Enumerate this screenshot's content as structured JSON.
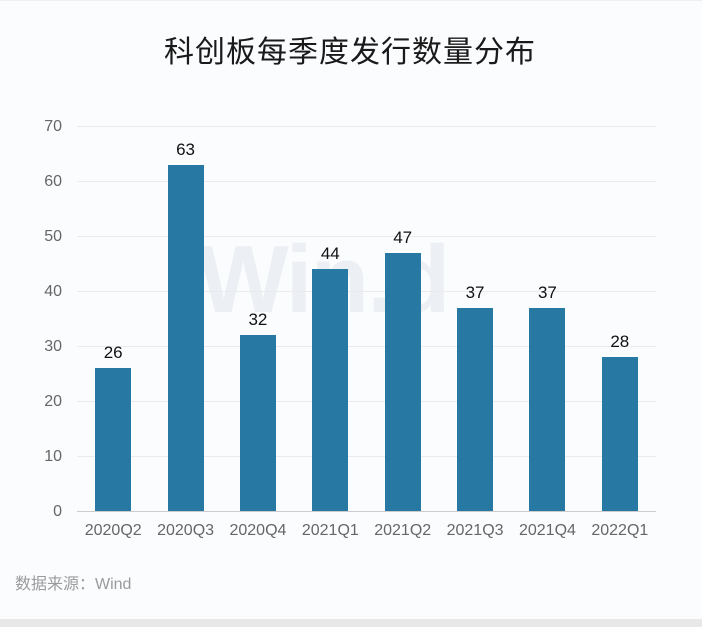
{
  "page": {
    "title": "科创板每季度发行数量分布",
    "source_note": "数据来源：Wind",
    "watermark": "Win.d"
  },
  "colors": {
    "bar": "#2878a4",
    "background": "#fbfcfe",
    "gridline": "#ebebeb",
    "axis_line": "#cccccc",
    "tick_label": "#666666",
    "value_label": "#111111",
    "title": "#1a1a1a",
    "source_note": "#9b9b9b",
    "watermark": "#eceff3",
    "bottom_strip": "#e8e8e8"
  },
  "chart_data": {
    "type": "bar",
    "title": "科创板每季度发行数量分布",
    "categories": [
      "2020Q2",
      "2020Q3",
      "2020Q4",
      "2021Q1",
      "2021Q2",
      "2021Q3",
      "2021Q4",
      "2022Q1"
    ],
    "values": [
      26,
      63,
      32,
      44,
      47,
      37,
      37,
      28
    ],
    "value_labels_shown": true,
    "xlabel": "",
    "ylabel": "",
    "ylim": [
      0,
      70
    ],
    "yticks": [
      0,
      10,
      20,
      30,
      40,
      50,
      60,
      70
    ],
    "grid": true,
    "legend": "none",
    "bar_color": "#2878a4",
    "source": "数据来源：Wind",
    "watermark": "Win.d"
  }
}
